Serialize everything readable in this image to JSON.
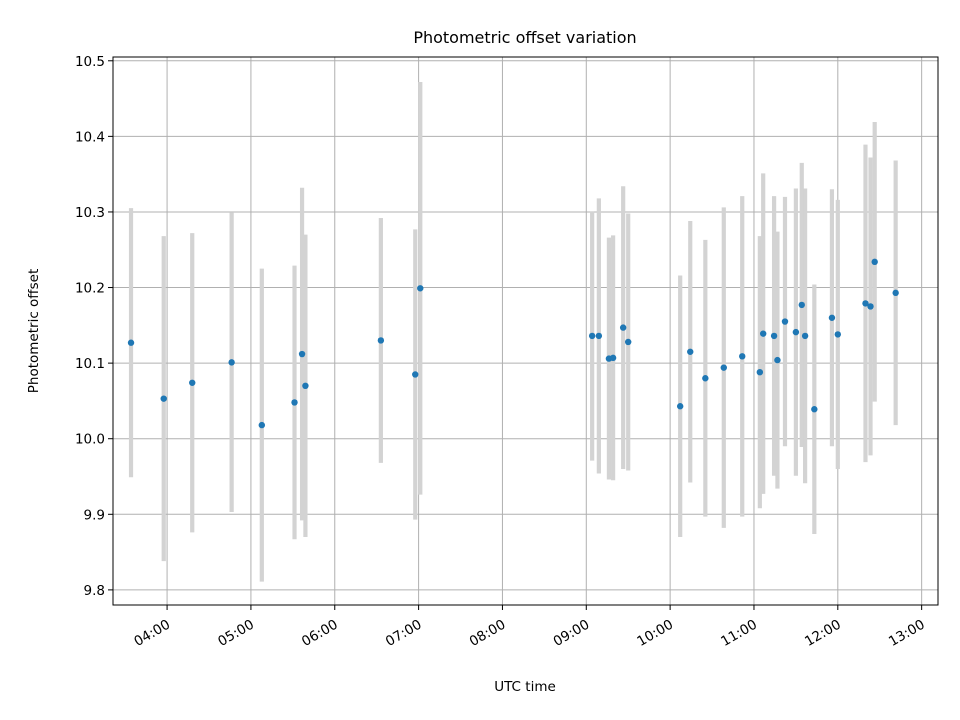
{
  "chart_data": {
    "type": "scatter",
    "title": "Photometric offset variation",
    "xlabel": "UTC time",
    "ylabel": "Photometric offset",
    "x_unit": "hours (UTC)",
    "xlim": [
      3.355,
      13.195
    ],
    "ylim": [
      9.78,
      10.505
    ],
    "grid": true,
    "x_ticks": [
      {
        "value": 4,
        "label": "04:00"
      },
      {
        "value": 5,
        "label": "05:00"
      },
      {
        "value": 6,
        "label": "06:00"
      },
      {
        "value": 7,
        "label": "07:00"
      },
      {
        "value": 8,
        "label": "08:00"
      },
      {
        "value": 9,
        "label": "09:00"
      },
      {
        "value": 10,
        "label": "10:00"
      },
      {
        "value": 11,
        "label": "11:00"
      },
      {
        "value": 12,
        "label": "12:00"
      },
      {
        "value": 13,
        "label": "13:00"
      }
    ],
    "y_ticks": [
      {
        "value": 9.8,
        "label": "9.8"
      },
      {
        "value": 9.9,
        "label": "9.9"
      },
      {
        "value": 10.0,
        "label": "10.0"
      },
      {
        "value": 10.1,
        "label": "10.1"
      },
      {
        "value": 10.2,
        "label": "10.2"
      },
      {
        "value": 10.3,
        "label": "10.3"
      },
      {
        "value": 10.4,
        "label": "10.4"
      },
      {
        "value": 10.5,
        "label": "10.5"
      }
    ],
    "colors": {
      "points": "#1f77b4",
      "error_bars": "#d3d3d3",
      "grid": "#b0b0b0"
    },
    "series": [
      {
        "points": [
          {
            "x": 3.57,
            "y": 10.127,
            "err": 0.178
          },
          {
            "x": 3.96,
            "y": 10.053,
            "err": 0.215
          },
          {
            "x": 4.3,
            "y": 10.074,
            "err": 0.198
          },
          {
            "x": 4.77,
            "y": 10.101,
            "err": 0.198
          },
          {
            "x": 5.13,
            "y": 10.018,
            "err": 0.207
          },
          {
            "x": 5.52,
            "y": 10.048,
            "err": 0.181
          },
          {
            "x": 5.61,
            "y": 10.112,
            "err": 0.22
          },
          {
            "x": 5.65,
            "y": 10.07,
            "err": 0.2
          },
          {
            "x": 6.55,
            "y": 10.13,
            "err": 0.162
          },
          {
            "x": 6.96,
            "y": 10.085,
            "err": 0.192
          },
          {
            "x": 7.02,
            "y": 10.199,
            "err": 0.273
          },
          {
            "x": 9.07,
            "y": 10.136,
            "err": 0.165
          },
          {
            "x": 9.15,
            "y": 10.136,
            "err": 0.182
          },
          {
            "x": 9.27,
            "y": 10.106,
            "err": 0.16
          },
          {
            "x": 9.32,
            "y": 10.107,
            "err": 0.162
          },
          {
            "x": 9.44,
            "y": 10.147,
            "err": 0.187
          },
          {
            "x": 9.5,
            "y": 10.128,
            "err": 0.17
          },
          {
            "x": 10.12,
            "y": 10.043,
            "err": 0.173
          },
          {
            "x": 10.24,
            "y": 10.115,
            "err": 0.173
          },
          {
            "x": 10.42,
            "y": 10.08,
            "err": 0.183
          },
          {
            "x": 10.64,
            "y": 10.094,
            "err": 0.212
          },
          {
            "x": 10.86,
            "y": 10.109,
            "err": 0.212
          },
          {
            "x": 11.07,
            "y": 10.088,
            "err": 0.18
          },
          {
            "x": 11.11,
            "y": 10.139,
            "err": 0.212
          },
          {
            "x": 11.24,
            "y": 10.136,
            "err": 0.185
          },
          {
            "x": 11.28,
            "y": 10.104,
            "err": 0.17
          },
          {
            "x": 11.37,
            "y": 10.155,
            "err": 0.165
          },
          {
            "x": 11.5,
            "y": 10.141,
            "err": 0.19
          },
          {
            "x": 11.57,
            "y": 10.177,
            "err": 0.188
          },
          {
            "x": 11.61,
            "y": 10.136,
            "err": 0.195
          },
          {
            "x": 11.72,
            "y": 10.039,
            "err": 0.165
          },
          {
            "x": 11.93,
            "y": 10.16,
            "err": 0.17
          },
          {
            "x": 12.0,
            "y": 10.138,
            "err": 0.178
          },
          {
            "x": 12.33,
            "y": 10.179,
            "err": 0.21
          },
          {
            "x": 12.39,
            "y": 10.175,
            "err": 0.197
          },
          {
            "x": 12.44,
            "y": 10.234,
            "err": 0.185
          },
          {
            "x": 12.69,
            "y": 10.193,
            "err": 0.175
          }
        ]
      }
    ]
  }
}
